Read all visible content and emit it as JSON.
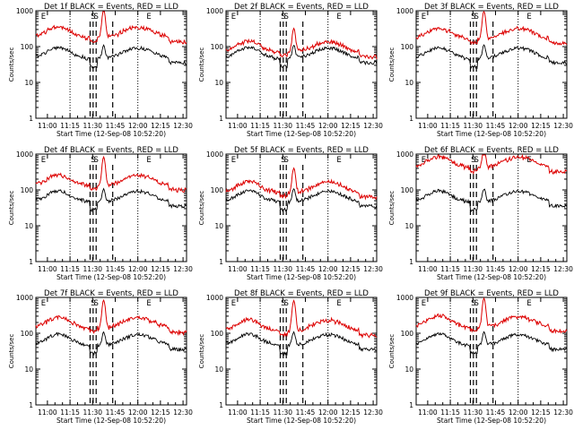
{
  "chart_data": {
    "type": "line",
    "scale": "log",
    "ylim": [
      1,
      1000
    ],
    "yticks": [
      "1",
      "10",
      "100",
      "1000"
    ],
    "ylabel": "Counts/sec",
    "xlabel": "Start Time (12-Sep-08 10:52:20)",
    "xticks": [
      "11:00",
      "11:15",
      "11:30",
      "11:45",
      "12:00",
      "12:15",
      "12:30"
    ],
    "xrange_min": [
      -7.33,
      37.67
    ],
    "colors": {
      "events": "#000000",
      "lld": "#dd0000",
      "axes": "#000000"
    },
    "panels": [
      {
        "title": "Det 1f BLACK = Events, RED = LLD",
        "markers": [
          {
            "t": 5,
            "label": "E"
          },
          {
            "t": 38,
            "label": "S"
          },
          {
            "t": 40,
            "label": "S"
          },
          {
            "t": 75,
            "label": "E"
          }
        ],
        "dashed": [
          36,
          38,
          40,
          51
        ],
        "events_base": 50,
        "lld_ratio": 3.8,
        "flare_peak": 900
      },
      {
        "title": "Det 2f BLACK = Events, RED = LLD",
        "markers": [
          {
            "t": 5,
            "label": "E"
          },
          {
            "t": 38,
            "label": "S"
          },
          {
            "t": 40,
            "label": "S"
          },
          {
            "t": 75,
            "label": "E"
          }
        ],
        "dashed": [
          36,
          38,
          40,
          51
        ],
        "events_base": 50,
        "lld_ratio": 1.5,
        "flare_peak": 250
      },
      {
        "title": "Det 3f BLACK = Events, RED = LLD",
        "markers": [
          {
            "t": 5,
            "label": "E"
          },
          {
            "t": 38,
            "label": "S"
          },
          {
            "t": 40,
            "label": "S"
          },
          {
            "t": 75,
            "label": "E"
          }
        ],
        "dashed": [
          36,
          38,
          40,
          51
        ],
        "events_base": 50,
        "lld_ratio": 3.5,
        "flare_peak": 800
      },
      {
        "title": "Det 4f BLACK = Events, RED = LLD",
        "markers": [
          {
            "t": 5,
            "label": "E"
          },
          {
            "t": 38,
            "label": "S"
          },
          {
            "t": 40,
            "label": "S"
          },
          {
            "t": 75,
            "label": "E"
          }
        ],
        "dashed": [
          36,
          38,
          40,
          51
        ],
        "events_base": 50,
        "lld_ratio": 2.8,
        "flare_peak": 700
      },
      {
        "title": "Det 5f BLACK = Events, RED = LLD",
        "markers": [
          {
            "t": 5,
            "label": "E"
          },
          {
            "t": 38,
            "label": "S"
          },
          {
            "t": 40,
            "label": "S"
          },
          {
            "t": 75,
            "label": "E"
          }
        ],
        "dashed": [
          36,
          38,
          40,
          51
        ],
        "events_base": 50,
        "lld_ratio": 1.8,
        "flare_peak": 320
      },
      {
        "title": "Det 6f BLACK = Events, RED = LLD",
        "markers": [
          {
            "t": 5,
            "label": "E"
          },
          {
            "t": 38,
            "label": "S"
          },
          {
            "t": 40,
            "label": "S"
          },
          {
            "t": 75,
            "label": "E"
          }
        ],
        "dashed": [
          36,
          38,
          40,
          51
        ],
        "events_base": 50,
        "lld_ratio": 9,
        "flare_peak": 1000
      },
      {
        "title": "Det 7f BLACK = Events, RED = LLD",
        "markers": [
          {
            "t": 5,
            "label": "E"
          },
          {
            "t": 38,
            "label": "S"
          },
          {
            "t": 40,
            "label": "S"
          },
          {
            "t": 75,
            "label": "E"
          }
        ],
        "dashed": [
          36,
          38,
          40,
          51
        ],
        "events_base": 50,
        "lld_ratio": 3.0,
        "flare_peak": 700
      },
      {
        "title": "Det 8f BLACK = Events, RED = LLD",
        "markers": [
          {
            "t": 5,
            "label": "E"
          },
          {
            "t": 38,
            "label": "S"
          },
          {
            "t": 40,
            "label": "S"
          },
          {
            "t": 75,
            "label": "E"
          }
        ],
        "dashed": [
          36,
          38,
          40,
          51
        ],
        "events_base": 50,
        "lld_ratio": 2.5,
        "flare_peak": 700
      },
      {
        "title": "Det 9f BLACK = Events, RED = LLD",
        "markers": [
          {
            "t": 5,
            "label": "E"
          },
          {
            "t": 38,
            "label": "S"
          },
          {
            "t": 40,
            "label": "S"
          },
          {
            "t": 75,
            "label": "E"
          }
        ],
        "dashed": [
          36,
          38,
          40,
          51
        ],
        "events_base": 50,
        "lld_ratio": 3.2,
        "flare_peak": 800
      }
    ]
  }
}
